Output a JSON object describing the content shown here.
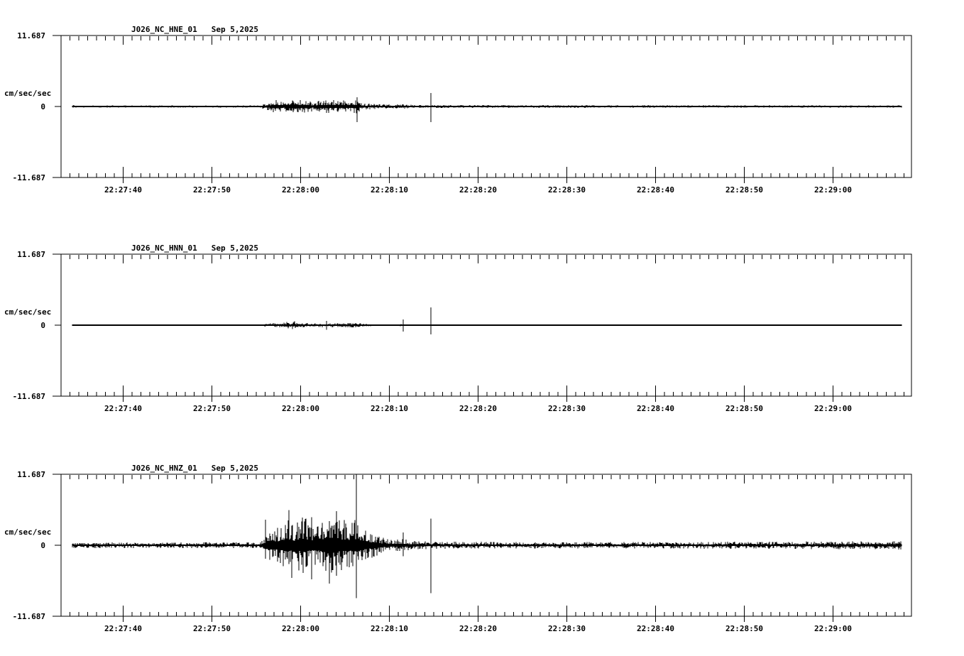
{
  "page": {
    "background_color": "#ffffff",
    "foreground_color": "#000000",
    "description": "Three-channel strong-motion seismogram display, station J026 network NC"
  },
  "chart_data": [
    {
      "type": "line",
      "title": "J026_NC_HNE_01",
      "date": "Sep 5,2025",
      "ylabel": "cm/sec/sec",
      "ylim": [
        -11.687,
        11.687
      ],
      "y_tick_labels": [
        "11.687",
        "0",
        "-11.687"
      ],
      "x_ticks": [
        {
          "t": 7,
          "label": "22:27:40"
        },
        {
          "t": 17,
          "label": "22:27:50"
        },
        {
          "t": 27,
          "label": "22:28:00"
        },
        {
          "t": 37,
          "label": "22:28:10"
        },
        {
          "t": 47,
          "label": "22:28:20"
        },
        {
          "t": 57,
          "label": "22:28:30"
        },
        {
          "t": 67,
          "label": "22:28:40"
        },
        {
          "t": 77,
          "label": "22:28:50"
        },
        {
          "t": 87,
          "label": "22:29:00"
        }
      ],
      "x_span_s": 95.8,
      "x_minor_interval_s": 1,
      "x_major_interval_s": 10,
      "grid": false,
      "trace": {
        "start_s": 1.3,
        "end_s": 94.7,
        "seed": 11,
        "envelope": [
          [
            1.3,
            0.35
          ],
          [
            1.8,
            0.18
          ],
          [
            22.4,
            0.18
          ],
          [
            23.0,
            0.6
          ],
          [
            24.3,
            1.15
          ],
          [
            25.3,
            0.85
          ],
          [
            26.3,
            1.5
          ],
          [
            27.1,
            1.05
          ],
          [
            28.3,
            0.85
          ],
          [
            29.3,
            0.95
          ],
          [
            30.3,
            1.15
          ],
          [
            31.3,
            0.9
          ],
          [
            32.3,
            1.05
          ],
          [
            33.2,
            1.2
          ],
          [
            33.9,
            0.6
          ],
          [
            35.0,
            0.45
          ],
          [
            37.5,
            0.3
          ],
          [
            38.4,
            0.5
          ],
          [
            39.2,
            0.3
          ],
          [
            41.0,
            0.27
          ],
          [
            44.0,
            0.24
          ],
          [
            70.0,
            0.21
          ],
          [
            94.7,
            0.2
          ]
        ],
        "spikes": [
          [
            33.36,
            1.5,
            2.6
          ],
          [
            41.68,
            2.2,
            2.6
          ]
        ]
      }
    },
    {
      "type": "line",
      "title": "J026_NC_HNN_01",
      "date": "Sep 5,2025",
      "ylabel": "cm/sec/sec",
      "ylim": [
        -11.687,
        11.687
      ],
      "y_tick_labels": [
        "11.687",
        "0",
        "-11.687"
      ],
      "x_ticks": [
        {
          "t": 7,
          "label": "22:27:40"
        },
        {
          "t": 17,
          "label": "22:27:50"
        },
        {
          "t": 27,
          "label": "22:28:00"
        },
        {
          "t": 37,
          "label": "22:28:10"
        },
        {
          "t": 47,
          "label": "22:28:20"
        },
        {
          "t": 57,
          "label": "22:28:30"
        },
        {
          "t": 67,
          "label": "22:28:40"
        },
        {
          "t": 77,
          "label": "22:28:50"
        },
        {
          "t": 87,
          "label": "22:29:00"
        }
      ],
      "x_span_s": 95.8,
      "x_minor_interval_s": 1,
      "x_major_interval_s": 10,
      "grid": false,
      "trace": {
        "start_s": 1.3,
        "end_s": 94.7,
        "seed": 22,
        "envelope": [
          [
            1.3,
            0.16
          ],
          [
            1.8,
            0.1
          ],
          [
            22.4,
            0.1
          ],
          [
            23.2,
            0.3
          ],
          [
            24.5,
            0.38
          ],
          [
            26.2,
            0.68
          ],
          [
            27.0,
            0.4
          ],
          [
            28.5,
            0.3
          ],
          [
            30.0,
            0.38
          ],
          [
            31.5,
            0.33
          ],
          [
            33.0,
            0.42
          ],
          [
            33.8,
            0.3
          ],
          [
            35.0,
            0.18
          ],
          [
            36.5,
            0.13
          ],
          [
            38.2,
            0.17
          ],
          [
            39.2,
            0.13
          ],
          [
            41.0,
            0.12
          ],
          [
            44.0,
            0.1
          ],
          [
            94.7,
            0.1
          ]
        ],
        "spikes": [
          [
            29.9,
            0.7,
            0.75
          ],
          [
            38.56,
            0.95,
            1.05
          ],
          [
            41.68,
            2.9,
            1.5
          ]
        ]
      }
    },
    {
      "type": "line",
      "title": "J026_NC_HNZ_01",
      "date": "Sep 5,2025",
      "ylabel": "cm/sec/sec",
      "ylim": [
        -11.687,
        11.687
      ],
      "y_tick_labels": [
        "11.687",
        "0",
        "-11.687"
      ],
      "x_ticks": [
        {
          "t": 7,
          "label": "22:27:40"
        },
        {
          "t": 17,
          "label": "22:27:50"
        },
        {
          "t": 27,
          "label": "22:28:00"
        },
        {
          "t": 37,
          "label": "22:28:10"
        },
        {
          "t": 47,
          "label": "22:28:20"
        },
        {
          "t": 57,
          "label": "22:28:30"
        },
        {
          "t": 67,
          "label": "22:28:40"
        },
        {
          "t": 77,
          "label": "22:28:50"
        },
        {
          "t": 87,
          "label": "22:29:00"
        }
      ],
      "x_span_s": 95.8,
      "x_minor_interval_s": 1,
      "x_major_interval_s": 10,
      "grid": false,
      "trace": {
        "start_s": 1.3,
        "end_s": 94.7,
        "seed": 33,
        "envelope": [
          [
            1.3,
            0.6
          ],
          [
            1.9,
            0.45
          ],
          [
            22.5,
            0.48
          ],
          [
            22.9,
            1.3
          ],
          [
            23.4,
            3.2
          ],
          [
            24.3,
            2.7
          ],
          [
            25.5,
            4.6
          ],
          [
            26.3,
            3.4
          ],
          [
            27.2,
            4.8
          ],
          [
            28.4,
            3.6
          ],
          [
            29.5,
            4.4
          ],
          [
            30.6,
            5.2
          ],
          [
            31.6,
            4.2
          ],
          [
            32.6,
            4.0
          ],
          [
            33.4,
            4.6
          ],
          [
            34.2,
            2.7
          ],
          [
            35.3,
            2.0
          ],
          [
            36.4,
            1.3
          ],
          [
            37.6,
            0.9
          ],
          [
            38.7,
            1.0
          ],
          [
            39.6,
            0.75
          ],
          [
            41.0,
            0.65
          ],
          [
            43.0,
            0.58
          ],
          [
            55.0,
            0.52
          ],
          [
            70.0,
            0.55
          ],
          [
            85.0,
            0.62
          ],
          [
            94.7,
            0.7
          ]
        ],
        "spikes": [
          [
            23.0,
            4.2,
            2.2
          ],
          [
            25.7,
            5.8,
            3.1
          ],
          [
            26.0,
            3.2,
            5.4
          ],
          [
            28.2,
            4.6,
            5.6
          ],
          [
            30.2,
            4.0,
            6.3
          ],
          [
            31.0,
            5.6,
            5.0
          ],
          [
            33.28,
            11.687,
            8.7
          ],
          [
            38.56,
            2.1,
            1.8
          ],
          [
            41.68,
            4.4,
            7.9
          ]
        ]
      }
    }
  ]
}
